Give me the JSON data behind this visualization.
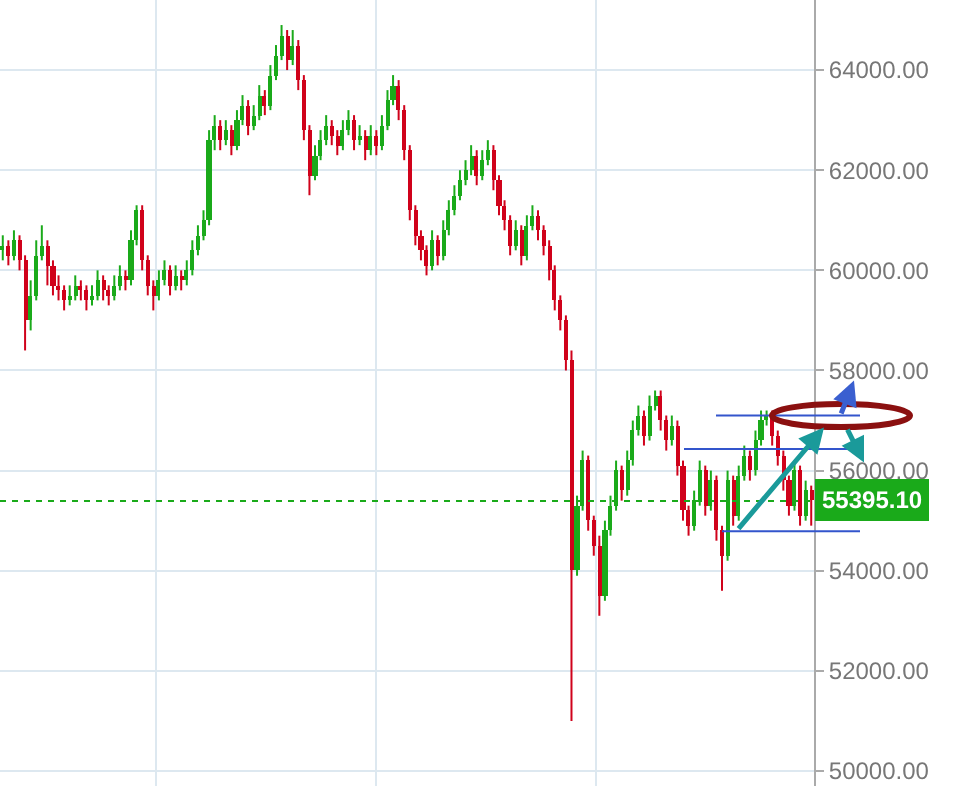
{
  "chart_data": {
    "type": "candlestick",
    "categories": [
      null,
      null,
      null,
      null,
      null,
      null,
      null,
      null,
      null,
      null,
      null,
      null,
      null,
      null,
      null,
      null,
      null,
      null,
      null,
      null,
      null,
      null,
      null,
      null,
      null,
      null,
      null,
      null,
      null,
      null,
      null,
      null,
      null,
      null,
      null,
      null,
      null,
      null,
      null,
      null,
      null,
      null,
      null,
      null,
      null,
      null,
      null,
      null,
      null,
      null,
      null,
      null,
      null,
      null,
      null,
      null,
      null,
      null,
      null,
      null,
      null,
      null,
      null,
      null,
      null,
      null,
      null,
      null,
      null,
      null,
      null,
      null,
      null,
      null,
      null,
      null,
      null,
      null,
      null,
      null,
      null,
      null,
      null,
      null,
      null,
      null,
      null,
      null,
      null,
      null,
      null,
      null,
      null,
      null,
      null,
      null,
      null,
      null,
      null,
      null,
      null,
      null,
      null,
      null,
      null,
      null,
      null,
      null,
      null,
      null,
      null,
      null,
      null,
      null,
      null,
      null,
      null,
      null,
      null,
      null,
      null,
      null,
      null,
      null,
      null,
      null,
      null,
      null,
      null,
      null,
      null,
      null,
      null,
      null,
      null,
      null,
      null,
      null,
      null,
      null,
      null,
      null,
      null,
      null,
      null,
      null
    ],
    "colors": [
      "#1aaa1a",
      "#d0021b",
      "#1aaa1a",
      "#d0021b",
      "#d0021b",
      "#1aaa1a",
      "#1aaa1a",
      "#1aaa1a",
      "#d0021b",
      "#d0021b",
      "#d0021b",
      "#d0021b",
      "#1aaa1a",
      "#1aaa1a",
      "#d0021b",
      "#d0021b",
      "#1aaa1a",
      "#1aaa1a",
      "#d0021b",
      "#d0021b",
      "#1aaa1a",
      "#1aaa1a",
      "#d0021b",
      "#1aaa1a",
      "#1aaa1a",
      "#d0021b",
      "#d0021b",
      "#d0021b",
      "#1aaa1a",
      "#1aaa1a",
      "#d0021b",
      "#1aaa1a",
      "#d0021b",
      "#1aaa1a",
      "#1aaa1a",
      "#1aaa1a",
      "#1aaa1a",
      "#1aaa1a",
      "#1aaa1a",
      "#d0021b",
      "#1aaa1a",
      "#d0021b",
      "#1aaa1a",
      "#1aaa1a",
      "#d0021b",
      "#1aaa1a",
      "#1aaa1a",
      "#d0021b",
      "#1aaa1a",
      "#1aaa1a",
      "#1aaa1a",
      "#d0021b",
      "#1aaa1a",
      "#d0021b",
      "#d0021b",
      "#d0021b",
      "#1aaa1a",
      "#1aaa1a",
      "#1aaa1a",
      "#d0021b",
      "#d0021b",
      "#1aaa1a",
      "#1aaa1a",
      "#d0021b",
      "#1aaa1a",
      "#d0021b",
      "#1aaa1a",
      "#d0021b",
      "#1aaa1a",
      "#1aaa1a",
      "#1aaa1a",
      "#d0021b",
      "#d0021b",
      "#d0021b",
      "#d0021b",
      "#d0021b",
      "#d0021b",
      "#1aaa1a",
      "#d0021b",
      "#1aaa1a",
      "#1aaa1a",
      "#1aaa1a",
      "#1aaa1a",
      "#1aaa1a",
      "#1aaa1a",
      "#d0021b",
      "#1aaa1a",
      "#1aaa1a",
      "#d0021b",
      "#d0021b",
      "#d0021b",
      "#d0021b",
      "#1aaa1a",
      "#d0021b",
      "#1aaa1a",
      "#1aaa1a",
      "#d0021b",
      "#d0021b",
      "#d0021b",
      "#d0021b",
      "#d0021b",
      "#d0021b",
      "#d0021b",
      "#1aaa1a",
      "#1aaa1a",
      "#d0021b",
      "#d0021b",
      "#d0021b",
      "#1aaa1a",
      "#1aaa1a",
      "#1aaa1a",
      "#d0021b",
      "#1aaa1a",
      "#1aaa1a",
      "#1aaa1a",
      "#d0021b",
      "#1aaa1a",
      "#1aaa1a",
      "#d0021b",
      "#d0021b",
      "#1aaa1a",
      "#d0021b",
      "#d0021b",
      "#d0021b",
      "#1aaa1a",
      "#1aaa1a",
      "#d0021b",
      "#1aaa1a",
      "#d0021b",
      "#d0021b",
      "#1aaa1a",
      "#d0021b",
      "#1aaa1a",
      "#1aaa1a",
      "#d0021b",
      "#1aaa1a",
      "#1aaa1a",
      "#1aaa1a",
      "#d0021b",
      "#d0021b",
      "#d0021b",
      "#d0021b",
      "#1aaa1a",
      "#d0021b",
      "#1aaa1a",
      "#d0021b"
    ],
    "ohlc": [
      [
        60400,
        60700,
        60200,
        60500
      ],
      [
        60500,
        60600,
        60100,
        60300
      ],
      [
        60300,
        60800,
        60200,
        60600
      ],
      [
        60600,
        60700,
        60000,
        60200
      ],
      [
        60200,
        60300,
        58400,
        59000
      ],
      [
        59000,
        59800,
        58800,
        59500
      ],
      [
        59500,
        60600,
        59400,
        60300
      ],
      [
        60300,
        60900,
        60200,
        60500
      ],
      [
        60500,
        60600,
        59700,
        60100
      ],
      [
        60100,
        60200,
        59500,
        59700
      ],
      [
        59700,
        59900,
        59400,
        59600
      ],
      [
        59600,
        59700,
        59200,
        59400
      ],
      [
        59400,
        59700,
        59300,
        59500
      ],
      [
        59500,
        59900,
        59400,
        59700
      ],
      [
        59700,
        59800,
        59400,
        59600
      ],
      [
        59600,
        59700,
        59200,
        59400
      ],
      [
        59400,
        59700,
        59300,
        59500
      ],
      [
        59500,
        60000,
        59400,
        59800
      ],
      [
        59800,
        59900,
        59400,
        59600
      ],
      [
        59600,
        59700,
        59300,
        59500
      ],
      [
        59500,
        59900,
        59400,
        59700
      ],
      [
        59700,
        60100,
        59600,
        59900
      ],
      [
        59900,
        60000,
        59600,
        59800
      ],
      [
        59800,
        60800,
        59700,
        60600
      ],
      [
        60600,
        61300,
        60500,
        61200
      ],
      [
        61200,
        61300,
        60000,
        60200
      ],
      [
        60200,
        60300,
        59500,
        59700
      ],
      [
        59700,
        59800,
        59200,
        59500
      ],
      [
        59500,
        60000,
        59400,
        59800
      ],
      [
        59800,
        60200,
        59700,
        60000
      ],
      [
        60000,
        60100,
        59500,
        59700
      ],
      [
        59700,
        60100,
        59600,
        59900
      ],
      [
        59900,
        60000,
        59600,
        59800
      ],
      [
        59800,
        60200,
        59700,
        60000
      ],
      [
        60000,
        60600,
        59900,
        60400
      ],
      [
        60400,
        60900,
        60300,
        60700
      ],
      [
        60700,
        61200,
        60600,
        61000
      ],
      [
        61000,
        62800,
        60900,
        62600
      ],
      [
        62600,
        63100,
        62400,
        62900
      ],
      [
        62900,
        63000,
        62400,
        62600
      ],
      [
        62600,
        63000,
        62500,
        62800
      ],
      [
        62800,
        62900,
        62300,
        62500
      ],
      [
        62500,
        63200,
        62400,
        63000
      ],
      [
        63000,
        63500,
        62900,
        63300
      ],
      [
        63300,
        63400,
        62700,
        62900
      ],
      [
        62900,
        63300,
        62800,
        63100
      ],
      [
        63100,
        63700,
        63000,
        63500
      ],
      [
        63500,
        63600,
        63100,
        63300
      ],
      [
        63300,
        64100,
        63200,
        63900
      ],
      [
        63900,
        64500,
        63800,
        64300
      ],
      [
        64300,
        64900,
        64200,
        64700
      ],
      [
        64700,
        64800,
        64000,
        64200
      ],
      [
        64200,
        64800,
        64100,
        64500
      ],
      [
        64500,
        64600,
        63600,
        63800
      ],
      [
        63800,
        63900,
        62600,
        62800
      ],
      [
        62800,
        62900,
        61500,
        61900
      ],
      [
        61900,
        62500,
        61800,
        62300
      ],
      [
        62300,
        62800,
        62200,
        62600
      ],
      [
        62600,
        63100,
        62500,
        62900
      ],
      [
        62900,
        63000,
        62500,
        62700
      ],
      [
        62700,
        62800,
        62300,
        62500
      ],
      [
        62500,
        63000,
        62400,
        62800
      ],
      [
        62800,
        63200,
        62700,
        63000
      ],
      [
        63000,
        63100,
        62400,
        62600
      ],
      [
        62600,
        62900,
        62500,
        62700
      ],
      [
        62700,
        62800,
        62200,
        62400
      ],
      [
        62400,
        62900,
        62300,
        62700
      ],
      [
        62700,
        62800,
        62300,
        62500
      ],
      [
        62500,
        63100,
        62400,
        62900
      ],
      [
        62900,
        63600,
        62800,
        63400
      ],
      [
        63400,
        63900,
        63300,
        63700
      ],
      [
        63700,
        63800,
        63000,
        63200
      ],
      [
        63200,
        63300,
        62200,
        62400
      ],
      [
        62400,
        62500,
        61000,
        61200
      ],
      [
        61200,
        61300,
        60500,
        60700
      ],
      [
        60700,
        60800,
        60200,
        60400
      ],
      [
        60400,
        60500,
        59900,
        60100
      ],
      [
        60100,
        60800,
        60000,
        60600
      ],
      [
        60600,
        60700,
        60100,
        60300
      ],
      [
        60300,
        61000,
        60200,
        60800
      ],
      [
        60800,
        61400,
        60700,
        61200
      ],
      [
        61200,
        61700,
        61100,
        61500
      ],
      [
        61500,
        62000,
        61400,
        61800
      ],
      [
        61800,
        62200,
        61700,
        62000
      ],
      [
        62000,
        62500,
        61900,
        62300
      ],
      [
        62300,
        62400,
        61700,
        61900
      ],
      [
        61900,
        62400,
        61800,
        62200
      ],
      [
        62200,
        62600,
        62100,
        62400
      ],
      [
        62400,
        62500,
        61600,
        61800
      ],
      [
        61800,
        61900,
        61100,
        61300
      ],
      [
        61300,
        61400,
        60800,
        61000
      ],
      [
        61000,
        61100,
        60300,
        60500
      ],
      [
        60500,
        61000,
        60400,
        60800
      ],
      [
        60800,
        60900,
        60100,
        60300
      ],
      [
        60300,
        61100,
        60200,
        60900
      ],
      [
        60900,
        61300,
        60800,
        61100
      ],
      [
        61100,
        61200,
        60600,
        60800
      ],
      [
        60800,
        60900,
        60300,
        60500
      ],
      [
        60500,
        60600,
        59800,
        60000
      ],
      [
        60000,
        60100,
        59200,
        59400
      ],
      [
        59400,
        59500,
        58800,
        59000
      ],
      [
        59000,
        59100,
        58000,
        58200
      ],
      [
        58200,
        58400,
        51000,
        54000
      ],
      [
        54000,
        55500,
        53900,
        55300
      ],
      [
        55300,
        56400,
        55200,
        56200
      ],
      [
        56200,
        56300,
        54800,
        55000
      ],
      [
        55000,
        55100,
        54300,
        54500
      ],
      [
        54500,
        54700,
        53100,
        53500
      ],
      [
        53500,
        55000,
        53400,
        54800
      ],
      [
        54800,
        55500,
        54700,
        55300
      ],
      [
        55300,
        56200,
        55200,
        56000
      ],
      [
        56000,
        56100,
        55400,
        55600
      ],
      [
        55600,
        56400,
        55500,
        56200
      ],
      [
        56200,
        57000,
        56100,
        56800
      ],
      [
        56800,
        57300,
        56700,
        57100
      ],
      [
        57100,
        57200,
        56500,
        56700
      ],
      [
        56700,
        57500,
        56600,
        57300
      ],
      [
        57300,
        57600,
        57200,
        57500
      ],
      [
        57500,
        57600,
        56800,
        57000
      ],
      [
        57000,
        57100,
        56400,
        56600
      ],
      [
        56600,
        57100,
        56500,
        56900
      ],
      [
        56900,
        57000,
        55900,
        56100
      ],
      [
        56100,
        56200,
        55000,
        55200
      ],
      [
        55200,
        55300,
        54700,
        54900
      ],
      [
        54900,
        55600,
        54800,
        55400
      ],
      [
        55400,
        56200,
        55300,
        56000
      ],
      [
        56000,
        56100,
        55100,
        55300
      ],
      [
        55300,
        56000,
        55200,
        55800
      ],
      [
        55800,
        55900,
        54600,
        54800
      ],
      [
        54800,
        54900,
        53600,
        54300
      ],
      [
        54300,
        56000,
        54200,
        55800
      ],
      [
        55800,
        55900,
        54900,
        55100
      ],
      [
        55100,
        56100,
        55000,
        55900
      ],
      [
        55900,
        56500,
        55800,
        56300
      ],
      [
        56300,
        56400,
        55800,
        56000
      ],
      [
        56000,
        56800,
        55900,
        56600
      ],
      [
        56600,
        57200,
        56500,
        57000
      ],
      [
        57000,
        57200,
        56900,
        57100
      ],
      [
        57100,
        57200,
        56500,
        56700
      ],
      [
        56700,
        56800,
        56100,
        56300
      ],
      [
        56300,
        56400,
        55600,
        55800
      ],
      [
        55800,
        55900,
        55100,
        55300
      ],
      [
        55300,
        56200,
        55200,
        56000
      ],
      [
        56000,
        56100,
        54900,
        55100
      ],
      [
        55100,
        55800,
        55000,
        55600
      ],
      [
        55600,
        55700,
        54900,
        55395.1
      ]
    ],
    "ylim": [
      49700,
      65400
    ],
    "yticks": [
      {
        "value": 50000,
        "label": "50000.00"
      },
      {
        "value": 52000,
        "label": "52000.00"
      },
      {
        "value": 54000,
        "label": "54000.00"
      },
      {
        "value": 56000,
        "label": "56000.00"
      },
      {
        "value": 58000,
        "label": "58000.00"
      },
      {
        "value": 60000,
        "label": "60000.00"
      },
      {
        "value": 62000,
        "label": "62000.00"
      },
      {
        "value": 64000,
        "label": "64000.00"
      }
    ],
    "tick_labels": "y",
    "grid": true,
    "ref_lines": [
      {
        "axis": "y",
        "value": 55395.1,
        "label": "55395.10",
        "color": "#1aaa1a",
        "line_style": "dotted"
      },
      {
        "axis": "y",
        "value": 57100,
        "color": "#3355cc",
        "line_style": "solid"
      },
      {
        "axis": "y",
        "value": 56430,
        "color": "#3355cc",
        "line_style": "solid"
      },
      {
        "axis": "y",
        "value": 54790,
        "color": "#3355cc",
        "line_style": "solid"
      }
    ]
  }
}
